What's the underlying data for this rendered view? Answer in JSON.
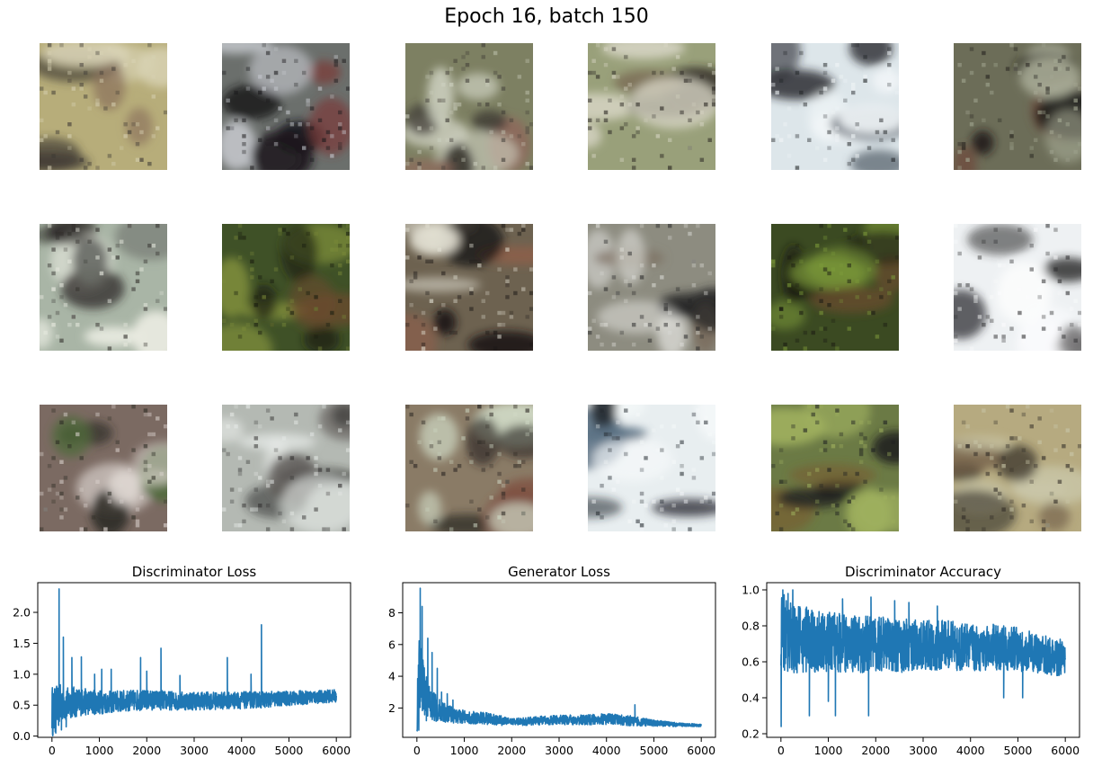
{
  "suptitle": "Epoch 16, batch 150",
  "samples": {
    "rows": 3,
    "cols": 6,
    "tiles": [
      {
        "base": "#b7ad7a",
        "dark": "#3a3632",
        "light": "#d9d3b5",
        "accent": "#8a6f5a"
      },
      {
        "base": "#6b6f6c",
        "dark": "#1b1a1c",
        "light": "#c9ccd2",
        "accent": "#7a3d3a"
      },
      {
        "base": "#7d8062",
        "dark": "#3e3a35",
        "light": "#cfd2c2",
        "accent": "#8d6a5b"
      },
      {
        "base": "#99a07a",
        "dark": "#24201d",
        "light": "#d8d6c5",
        "accent": "#7a6b54"
      },
      {
        "base": "#dde6ea",
        "dark": "#202326",
        "light": "#f2f6f8",
        "accent": "#56606b"
      },
      {
        "base": "#6c6d58",
        "dark": "#1d1a18",
        "light": "#a7ab96",
        "accent": "#6f5040"
      },
      {
        "base": "#a9b5a6",
        "dark": "#2d2a27",
        "light": "#eaece2",
        "accent": "#6b6d68"
      },
      {
        "base": "#3f5127",
        "dark": "#1a1e10",
        "light": "#7b8a3a",
        "accent": "#6d4a2c"
      },
      {
        "base": "#6d6250",
        "dark": "#1c1816",
        "light": "#e3e1d4",
        "accent": "#8f5f4a"
      },
      {
        "base": "#8d8c80",
        "dark": "#292929",
        "light": "#dfdfda",
        "accent": "#7b6e60"
      },
      {
        "base": "#3b4a22",
        "dark": "#1a1a12",
        "light": "#7c9a3a",
        "accent": "#6d4c2d"
      },
      {
        "base": "#eef1f3",
        "dark": "#2b2b2d",
        "light": "#fbfcfd",
        "accent": "#6b6a6b"
      },
      {
        "base": "#7b6a62",
        "dark": "#2a2a22",
        "light": "#ded6d2",
        "accent": "#4f6b3a"
      },
      {
        "base": "#b4b9b3",
        "dark": "#2c2b2a",
        "light": "#e7ebe8",
        "accent": "#5c5754"
      },
      {
        "base": "#8a7b66",
        "dark": "#2b2622",
        "light": "#cfd9c5",
        "accent": "#7d4c3f"
      },
      {
        "base": "#e8eef0",
        "dark": "#242a30",
        "light": "#f6f9fa",
        "accent": "#5b7184"
      },
      {
        "base": "#6b7a45",
        "dark": "#1d1f20",
        "light": "#9fb05e",
        "accent": "#7a5a2f"
      },
      {
        "base": "#b6aa80",
        "dark": "#2f2a25",
        "light": "#cac8aa",
        "accent": "#6c5842"
      }
    ]
  },
  "colors": {
    "line": "#1f77b4",
    "axis": "#000000"
  },
  "chart_data": [
    {
      "type": "line",
      "title": "Discriminator Loss",
      "xlabel": "",
      "ylabel": "",
      "xlim": [
        -300,
        6300
      ],
      "ylim": [
        -0.02,
        2.48
      ],
      "xticks": [
        0,
        1000,
        2000,
        3000,
        4000,
        5000,
        6000
      ],
      "yticks": [
        0.0,
        0.5,
        1.0,
        1.5,
        2.0
      ],
      "ytick_labels": [
        "0.0",
        "0.5",
        "1.0",
        "1.5",
        "2.0"
      ],
      "grid": false,
      "series": [
        {
          "x": [
            0,
            30,
            60,
            100,
            130,
            160,
            200,
            250,
            300,
            400,
            500,
            600,
            700,
            800,
            1000,
            1200,
            1400,
            1600,
            1800,
            2000,
            2300,
            2600,
            3000,
            3500,
            4000,
            4500,
            5000,
            5500,
            6000
          ],
          "y": [
            0.45,
            0.35,
            0.4,
            0.5,
            0.45,
            0.5,
            0.55,
            0.55,
            0.5,
            0.55,
            0.55,
            0.55,
            0.55,
            0.55,
            0.55,
            0.55,
            0.56,
            0.57,
            0.58,
            0.58,
            0.58,
            0.57,
            0.57,
            0.57,
            0.58,
            0.59,
            0.61,
            0.63,
            0.65
          ],
          "spread": [
            0.4,
            0.4,
            0.38,
            0.35,
            0.33,
            0.32,
            0.3,
            0.3,
            0.28,
            0.26,
            0.25,
            0.22,
            0.22,
            0.2,
            0.2,
            0.18,
            0.18,
            0.17,
            0.17,
            0.16,
            0.16,
            0.15,
            0.15,
            0.14,
            0.14,
            0.13,
            0.12,
            0.11,
            0.1
          ],
          "spikes": [
            [
              80,
              0.05
            ],
            [
              150,
              2.38
            ],
            [
              200,
              0.1
            ],
            [
              240,
              1.6
            ],
            [
              300,
              0.15
            ],
            [
              420,
              1.27
            ],
            [
              620,
              1.28
            ],
            [
              900,
              1.0
            ],
            [
              1050,
              1.08
            ],
            [
              1250,
              1.08
            ],
            [
              1870,
              1.27
            ],
            [
              2000,
              1.05
            ],
            [
              2300,
              1.42
            ],
            [
              2700,
              0.98
            ],
            [
              3700,
              1.27
            ],
            [
              4200,
              1.0
            ],
            [
              4420,
              1.8
            ]
          ]
        }
      ]
    },
    {
      "type": "line",
      "title": "Generator Loss",
      "xlabel": "",
      "ylabel": "",
      "xlim": [
        -300,
        6300
      ],
      "ylim": [
        0.15,
        9.9
      ],
      "xticks": [
        0,
        1000,
        2000,
        3000,
        4000,
        5000,
        6000
      ],
      "yticks": [
        2,
        4,
        6,
        8
      ],
      "ytick_labels": [
        "2",
        "4",
        "6",
        "8"
      ],
      "grid": false,
      "series": [
        {
          "x": [
            0,
            30,
            60,
            100,
            130,
            160,
            200,
            250,
            300,
            400,
            500,
            600,
            700,
            800,
            1000,
            1200,
            1400,
            1600,
            1800,
            2000,
            2300,
            2600,
            3000,
            3500,
            4000,
            4500,
            5000,
            5500,
            6000
          ],
          "y": [
            1.0,
            3.5,
            4.5,
            4.0,
            3.5,
            3.0,
            2.8,
            2.4,
            2.2,
            2.0,
            1.8,
            1.7,
            1.6,
            1.5,
            1.45,
            1.4,
            1.35,
            1.3,
            1.2,
            1.15,
            1.15,
            1.2,
            1.25,
            1.25,
            1.3,
            1.2,
            1.05,
            0.95,
            0.9
          ],
          "spread": [
            0.6,
            2.5,
            2.5,
            2.2,
            1.8,
            1.5,
            1.3,
            1.1,
            1.0,
            0.85,
            0.7,
            0.6,
            0.55,
            0.5,
            0.45,
            0.4,
            0.38,
            0.35,
            0.3,
            0.25,
            0.25,
            0.28,
            0.3,
            0.32,
            0.35,
            0.32,
            0.2,
            0.12,
            0.08
          ],
          "spikes": [
            [
              40,
              0.6
            ],
            [
              70,
              9.55
            ],
            [
              110,
              8.4
            ],
            [
              140,
              3.0
            ],
            [
              200,
              1.2
            ],
            [
              230,
              6.4
            ],
            [
              320,
              5.5
            ],
            [
              430,
              4.5
            ],
            [
              520,
              3.0
            ],
            [
              640,
              2.9
            ],
            [
              760,
              2.5
            ],
            [
              4600,
              2.2
            ]
          ]
        }
      ]
    },
    {
      "type": "line",
      "title": "Discriminator Accuracy",
      "xlabel": "",
      "ylabel": "",
      "xlim": [
        -300,
        6300
      ],
      "ylim": [
        0.18,
        1.04
      ],
      "xticks": [
        0,
        1000,
        2000,
        3000,
        4000,
        5000,
        6000
      ],
      "yticks": [
        0.2,
        0.4,
        0.6,
        0.8,
        1.0
      ],
      "ytick_labels": [
        "0.2",
        "0.4",
        "0.6",
        "0.8",
        "1.0"
      ],
      "grid": false,
      "series": [
        {
          "x": [
            0,
            30,
            60,
            100,
            130,
            160,
            200,
            250,
            300,
            400,
            500,
            600,
            700,
            800,
            1000,
            1200,
            1400,
            1600,
            1800,
            2000,
            2300,
            2600,
            3000,
            3500,
            4000,
            4500,
            5000,
            5500,
            6000
          ],
          "y": [
            0.75,
            0.78,
            0.76,
            0.74,
            0.74,
            0.73,
            0.73,
            0.72,
            0.72,
            0.72,
            0.72,
            0.72,
            0.71,
            0.71,
            0.71,
            0.7,
            0.7,
            0.7,
            0.7,
            0.7,
            0.7,
            0.69,
            0.69,
            0.69,
            0.68,
            0.68,
            0.67,
            0.64,
            0.62
          ],
          "spread": [
            0.22,
            0.22,
            0.22,
            0.21,
            0.21,
            0.2,
            0.2,
            0.2,
            0.19,
            0.19,
            0.19,
            0.18,
            0.18,
            0.18,
            0.17,
            0.17,
            0.16,
            0.16,
            0.16,
            0.15,
            0.15,
            0.15,
            0.14,
            0.14,
            0.13,
            0.13,
            0.12,
            0.11,
            0.1
          ],
          "spikes": [
            [
              5,
              0.24
            ],
            [
              40,
              1.0
            ],
            [
              150,
              0.98
            ],
            [
              250,
              1.0
            ],
            [
              600,
              0.3
            ],
            [
              1000,
              0.38
            ],
            [
              1150,
              0.3
            ],
            [
              1300,
              0.95
            ],
            [
              1850,
              0.3
            ],
            [
              1900,
              0.96
            ],
            [
              2400,
              0.94
            ],
            [
              2700,
              0.93
            ],
            [
              3300,
              0.91
            ],
            [
              4700,
              0.4
            ],
            [
              5100,
              0.4
            ]
          ]
        }
      ]
    }
  ]
}
